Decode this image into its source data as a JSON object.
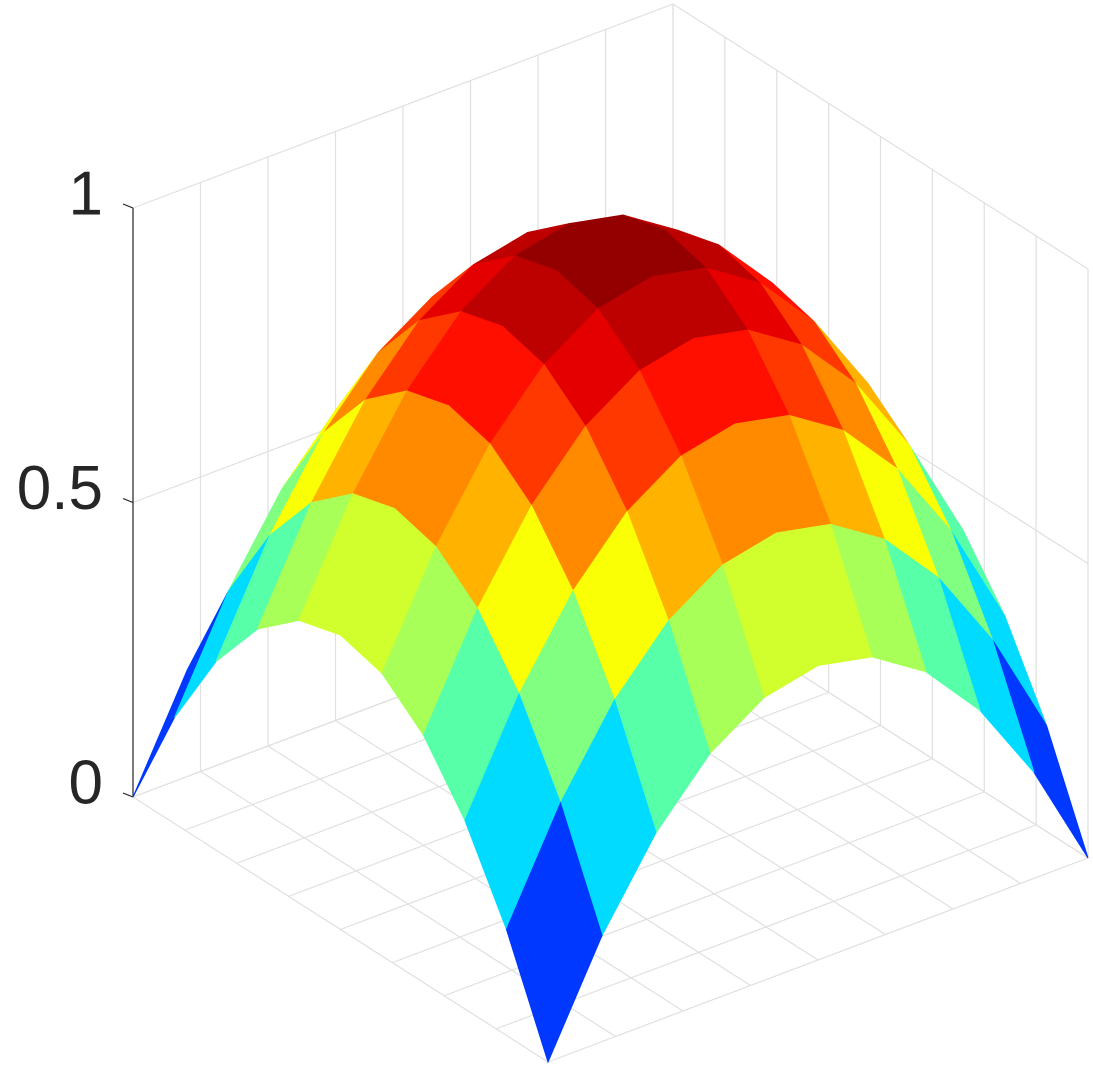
{
  "chart_data": {
    "type": "surface",
    "colormap": "jet",
    "grid": true,
    "x": [
      -1,
      -0.8,
      -0.6,
      -0.4,
      -0.2,
      0,
      0.2,
      0.4,
      0.6,
      0.8,
      1
    ],
    "y": [
      -1,
      -0.8,
      -0.6,
      -0.4,
      -0.2,
      0,
      0.2,
      0.4,
      0.6,
      0.8,
      1
    ],
    "z": [
      [
        0,
        0.18,
        0.32,
        0.42,
        0.48,
        0.5,
        0.48,
        0.42,
        0.32,
        0.18,
        0
      ],
      [
        0.18,
        0.36,
        0.5,
        0.6,
        0.66,
        0.68,
        0.66,
        0.6,
        0.5,
        0.36,
        0.18
      ],
      [
        0.32,
        0.5,
        0.64,
        0.74,
        0.8,
        0.82,
        0.8,
        0.74,
        0.64,
        0.5,
        0.32
      ],
      [
        0.42,
        0.6,
        0.74,
        0.84,
        0.9,
        0.92,
        0.9,
        0.84,
        0.74,
        0.6,
        0.42
      ],
      [
        0.48,
        0.66,
        0.8,
        0.9,
        0.96,
        0.98,
        0.96,
        0.9,
        0.8,
        0.66,
        0.48
      ],
      [
        0.5,
        0.68,
        0.82,
        0.92,
        0.98,
        1,
        0.98,
        0.92,
        0.82,
        0.68,
        0.5
      ],
      [
        0.48,
        0.66,
        0.8,
        0.9,
        0.96,
        0.98,
        0.96,
        0.9,
        0.8,
        0.66,
        0.48
      ],
      [
        0.42,
        0.6,
        0.74,
        0.84,
        0.9,
        0.92,
        0.9,
        0.84,
        0.74,
        0.6,
        0.42
      ],
      [
        0.32,
        0.5,
        0.64,
        0.74,
        0.8,
        0.82,
        0.8,
        0.74,
        0.64,
        0.5,
        0.32
      ],
      [
        0.18,
        0.36,
        0.5,
        0.6,
        0.66,
        0.68,
        0.66,
        0.6,
        0.5,
        0.36,
        0.18
      ],
      [
        0,
        0.18,
        0.32,
        0.42,
        0.48,
        0.5,
        0.48,
        0.42,
        0.32,
        0.18,
        0
      ]
    ],
    "xlim": [
      -1,
      1
    ],
    "xticks": [
      -1,
      -0.75,
      -0.5,
      -0.25,
      0,
      0.25,
      0.5,
      0.75,
      1
    ],
    "ylim": [
      -1,
      1
    ],
    "yticks": [
      -1,
      -0.75,
      -0.5,
      -0.25,
      0,
      0.25,
      0.5,
      0.75,
      1
    ],
    "zlim": [
      0,
      1
    ],
    "zticks": [
      0,
      0.5,
      1
    ]
  }
}
